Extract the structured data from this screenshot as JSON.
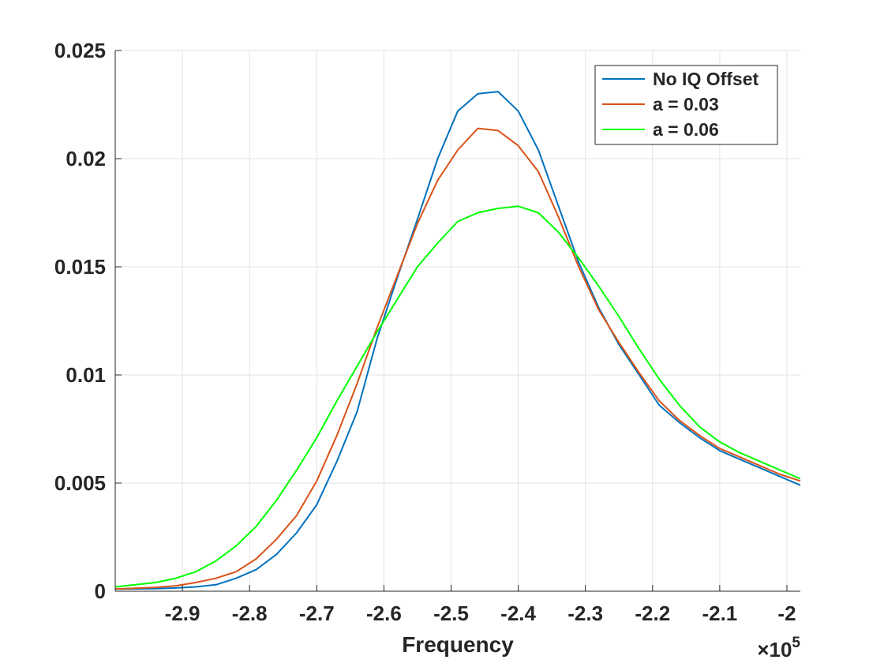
{
  "chart_data": {
    "type": "line",
    "title": "",
    "xlabel": "Frequency",
    "ylabel": "",
    "x_exponent_label": "×10",
    "x_exponent_power": "5",
    "xlim": [
      -3.0,
      -1.98
    ],
    "ylim": [
      0,
      0.025
    ],
    "x_ticks": [
      -2.9,
      -2.8,
      -2.7,
      -2.6,
      -2.5,
      -2.4,
      -2.3,
      -2.2,
      -2.1,
      -2.0
    ],
    "x_tick_labels": [
      "-2.9",
      "-2.8",
      "-2.7",
      "-2.6",
      "-2.5",
      "-2.4",
      "-2.3",
      "-2.2",
      "-2.1",
      "-2"
    ],
    "y_ticks": [
      0,
      0.005,
      0.01,
      0.015,
      0.02,
      0.025
    ],
    "y_tick_labels": [
      "0",
      "0.005",
      "0.01",
      "0.015",
      "0.02",
      "0.025"
    ],
    "grid": true,
    "legend_position": "top-right",
    "series": [
      {
        "name": "No IQ Offset",
        "color": "#0072BD",
        "x": [
          -3.0,
          -2.94,
          -2.91,
          -2.88,
          -2.85,
          -2.82,
          -2.79,
          -2.76,
          -2.73,
          -2.7,
          -2.67,
          -2.64,
          -2.61,
          -2.58,
          -2.55,
          -2.52,
          -2.49,
          -2.46,
          -2.43,
          -2.4,
          -2.37,
          -2.34,
          -2.31,
          -2.28,
          -2.25,
          -2.22,
          -2.19,
          -2.16,
          -2.13,
          -2.1,
          -2.07,
          -2.04,
          -2.01,
          -1.98
        ],
        "y": [
          0.0001,
          0.00012,
          0.00015,
          0.0002,
          0.0003,
          0.0006,
          0.001,
          0.0017,
          0.0027,
          0.004,
          0.006,
          0.0083,
          0.0117,
          0.0145,
          0.0172,
          0.02,
          0.0222,
          0.023,
          0.0231,
          0.0222,
          0.0204,
          0.0178,
          0.0152,
          0.0131,
          0.0114,
          0.01,
          0.0086,
          0.0078,
          0.0071,
          0.0065,
          0.0061,
          0.0057,
          0.0053,
          0.0049
        ]
      },
      {
        "name": "a = 0.03",
        "color": "#D95319",
        "x": [
          -3.0,
          -2.94,
          -2.91,
          -2.88,
          -2.85,
          -2.82,
          -2.79,
          -2.76,
          -2.73,
          -2.7,
          -2.67,
          -2.64,
          -2.61,
          -2.58,
          -2.55,
          -2.52,
          -2.49,
          -2.46,
          -2.43,
          -2.4,
          -2.37,
          -2.34,
          -2.31,
          -2.28,
          -2.25,
          -2.22,
          -2.19,
          -2.16,
          -2.13,
          -2.1,
          -2.07,
          -2.04,
          -2.01,
          -1.98
        ],
        "y": [
          0.0001,
          0.00018,
          0.00025,
          0.0004,
          0.0006,
          0.0009,
          0.0015,
          0.0024,
          0.0035,
          0.0051,
          0.0072,
          0.0096,
          0.0122,
          0.0146,
          0.017,
          0.019,
          0.0204,
          0.0214,
          0.0213,
          0.0206,
          0.0194,
          0.0173,
          0.015,
          0.013,
          0.0115,
          0.0101,
          0.0088,
          0.0079,
          0.0072,
          0.0066,
          0.0062,
          0.0058,
          0.0054,
          0.0051
        ]
      },
      {
        "name": "a = 0.06",
        "color": "#00FF00",
        "x": [
          -3.0,
          -2.97,
          -2.94,
          -2.91,
          -2.88,
          -2.85,
          -2.82,
          -2.79,
          -2.76,
          -2.73,
          -2.7,
          -2.67,
          -2.64,
          -2.61,
          -2.58,
          -2.55,
          -2.52,
          -2.49,
          -2.46,
          -2.43,
          -2.4,
          -2.37,
          -2.34,
          -2.31,
          -2.28,
          -2.25,
          -2.22,
          -2.19,
          -2.16,
          -2.13,
          -2.1,
          -2.07,
          -2.04,
          -2.01,
          -1.98
        ],
        "y": [
          0.0002,
          0.0003,
          0.0004,
          0.0006,
          0.0009,
          0.0014,
          0.0021,
          0.003,
          0.0042,
          0.0056,
          0.0071,
          0.0088,
          0.0104,
          0.012,
          0.0135,
          0.015,
          0.0161,
          0.0171,
          0.0175,
          0.0177,
          0.0178,
          0.0175,
          0.0166,
          0.0154,
          0.0141,
          0.0127,
          0.0112,
          0.0098,
          0.0086,
          0.0076,
          0.0069,
          0.0064,
          0.006,
          0.0056,
          0.0052
        ]
      }
    ]
  }
}
